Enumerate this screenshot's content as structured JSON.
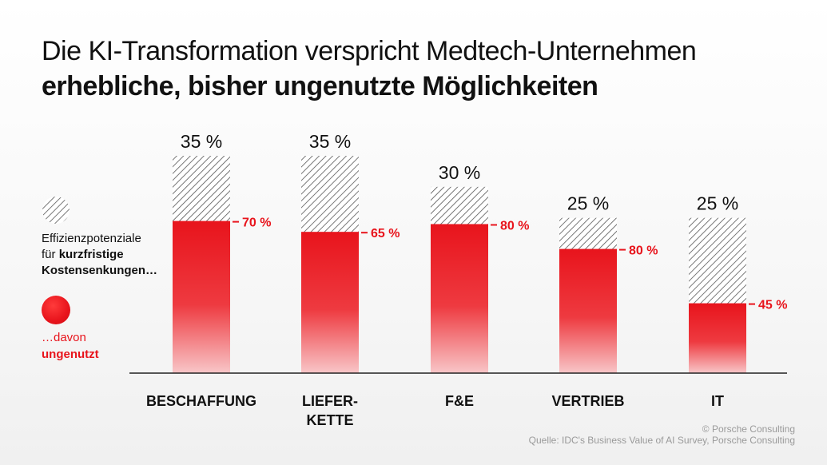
{
  "title": {
    "line1": "Die KI-Transformation verspricht Medtech-Unternehmen",
    "line2": "erhebliche, bisher ungenutzte Möglichkeiten"
  },
  "legend": {
    "hatch_line1": "Effizienzpotenziale",
    "hatch_line2_prefix": "für ",
    "hatch_line2_bold": "kurzfristige",
    "hatch_line3_bold": "Kostensenkungen…",
    "red_line1": "…davon",
    "red_line2": "ungenutzt"
  },
  "credits": {
    "copyright": "© Porsche Consulting",
    "source": "Quelle: IDC's Business Value of AI Survey, Porsche Consulting"
  },
  "colors": {
    "accent": "#e8141c",
    "hatch": "#555555",
    "text": "#111111"
  },
  "chart_data": {
    "type": "bar",
    "title": "Die KI-Transformation verspricht Medtech-Unternehmen erhebliche, bisher ungenutzte Möglichkeiten",
    "categories": [
      "BESCHAFFUNG",
      "LIEFER-\nKETTE",
      "F&E",
      "VERTRIEB",
      "IT"
    ],
    "series": [
      {
        "name": "Effizienzpotenziale für kurzfristige Kostensenkungen…",
        "values": [
          35,
          35,
          30,
          25,
          25
        ],
        "labels": [
          "35 %",
          "35 %",
          "30 %",
          "25 %",
          "25 %"
        ]
      },
      {
        "name": "…davon ungenutzt",
        "values": [
          70,
          65,
          80,
          80,
          45
        ],
        "labels": [
          "70 %",
          "65 %",
          "80 %",
          "80 %",
          "45 %"
        ]
      }
    ],
    "ylim": [
      0,
      35
    ],
    "xlabel": "",
    "ylabel": "",
    "grid": false
  }
}
